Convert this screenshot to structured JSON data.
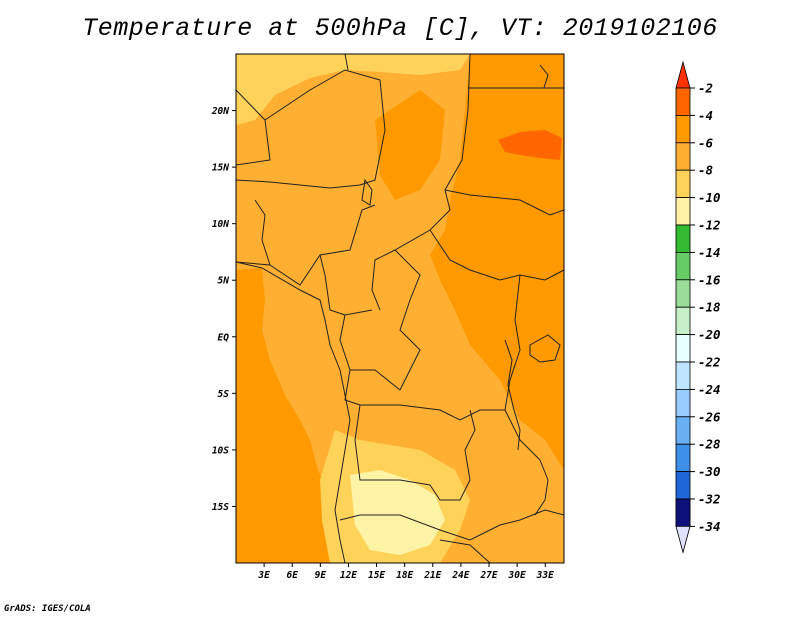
{
  "title": "Temperature at 500hPa [C], VT: 2019102106",
  "credit": "GrADS: IGES/COLA",
  "map": {
    "lat_labels": [
      "20N",
      "15N",
      "10N",
      "5N",
      "EQ",
      "5S",
      "10S",
      "15S"
    ],
    "lat_values": [
      20,
      15,
      10,
      5,
      0,
      -5,
      -10,
      -15
    ],
    "lon_labels": [
      "3E",
      "6E",
      "9E",
      "12E",
      "15E",
      "18E",
      "21E",
      "24E",
      "27E",
      "30E",
      "33E"
    ],
    "lon_values": [
      3,
      6,
      9,
      12,
      15,
      18,
      21,
      24,
      27,
      30,
      33
    ],
    "lon_range": [
      0,
      35
    ],
    "lat_range": [
      -20,
      25
    ]
  },
  "colorbar": {
    "labels": [
      "-2",
      "-4",
      "-6",
      "-8",
      "-10",
      "-12",
      "-14",
      "-16",
      "-18",
      "-20",
      "-22",
      "-24",
      "-26",
      "-28",
      "-30",
      "-32",
      "-34"
    ],
    "colors": [
      "#ff6600",
      "#ff9900",
      "#ffb033",
      "#ffd35a",
      "#fff3a6",
      "#33bb33",
      "#66cc66",
      "#99dd99",
      "#c8f0c8",
      "#e6ffff",
      "#bfe4ff",
      "#99ccff",
      "#6ab0f5",
      "#3d8fe8",
      "#1f66d9",
      "#0a3db0",
      "#10107a"
    ],
    "top_arrow_color": "#ff3300",
    "bottom_arrow_color": "#e0e0ff"
  },
  "field_colors": {
    "warm_minus4": "#ff9900",
    "mid_minus6": "#ffb033",
    "cool_minus8": "#ffd35a",
    "cold_minus10": "#fff3a6",
    "hot_minus2": "#ff6600"
  }
}
